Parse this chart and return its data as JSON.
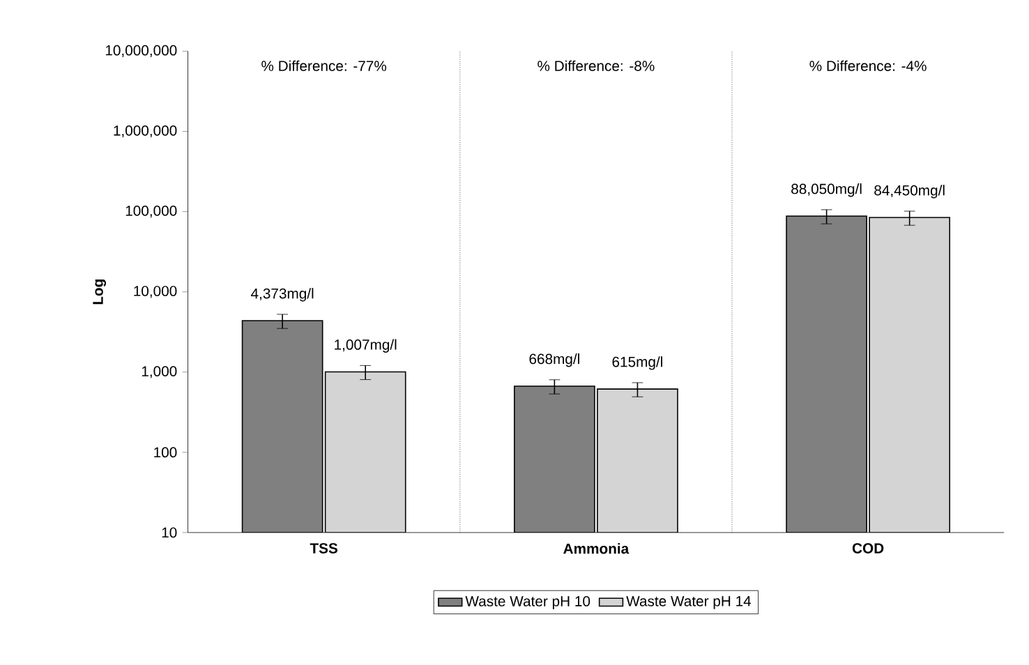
{
  "chart_data": {
    "type": "bar",
    "ylabel": "Log",
    "categories": [
      "TSS",
      "Ammonia",
      "COD"
    ],
    "series": [
      {
        "name": "Waste Water pH 10",
        "color": "#808080",
        "values": [
          4373,
          668,
          88050
        ],
        "errors": [
          875,
          134,
          17610
        ],
        "value_labels": [
          "4,373mg/l",
          "668mg/l",
          "88,050mg/l"
        ]
      },
      {
        "name": "Waste Water pH 14",
        "color": "#d4d4d4",
        "values": [
          1007,
          615,
          84450
        ],
        "errors": [
          201,
          123,
          16890
        ],
        "value_labels": [
          "1,007mg/l",
          "615mg/l",
          "84,450mg/l"
        ]
      }
    ],
    "log": true,
    "ylim": [
      10,
      10000000
    ],
    "yticks": [
      10,
      100,
      {
        "value": 1000,
        "label": "1,000"
      },
      {
        "value": 10000,
        "label": "10,000"
      },
      {
        "value": 100000,
        "label": "100,000"
      },
      {
        "value": 1000000,
        "label": "1,000,000"
      },
      {
        "value": 10000000,
        "label": "10,000,000"
      }
    ],
    "grid": "x",
    "legend": "bottom",
    "annotations": [
      "% Difference: -77%",
      "% Difference: -8%",
      "% Difference: -4%"
    ]
  }
}
